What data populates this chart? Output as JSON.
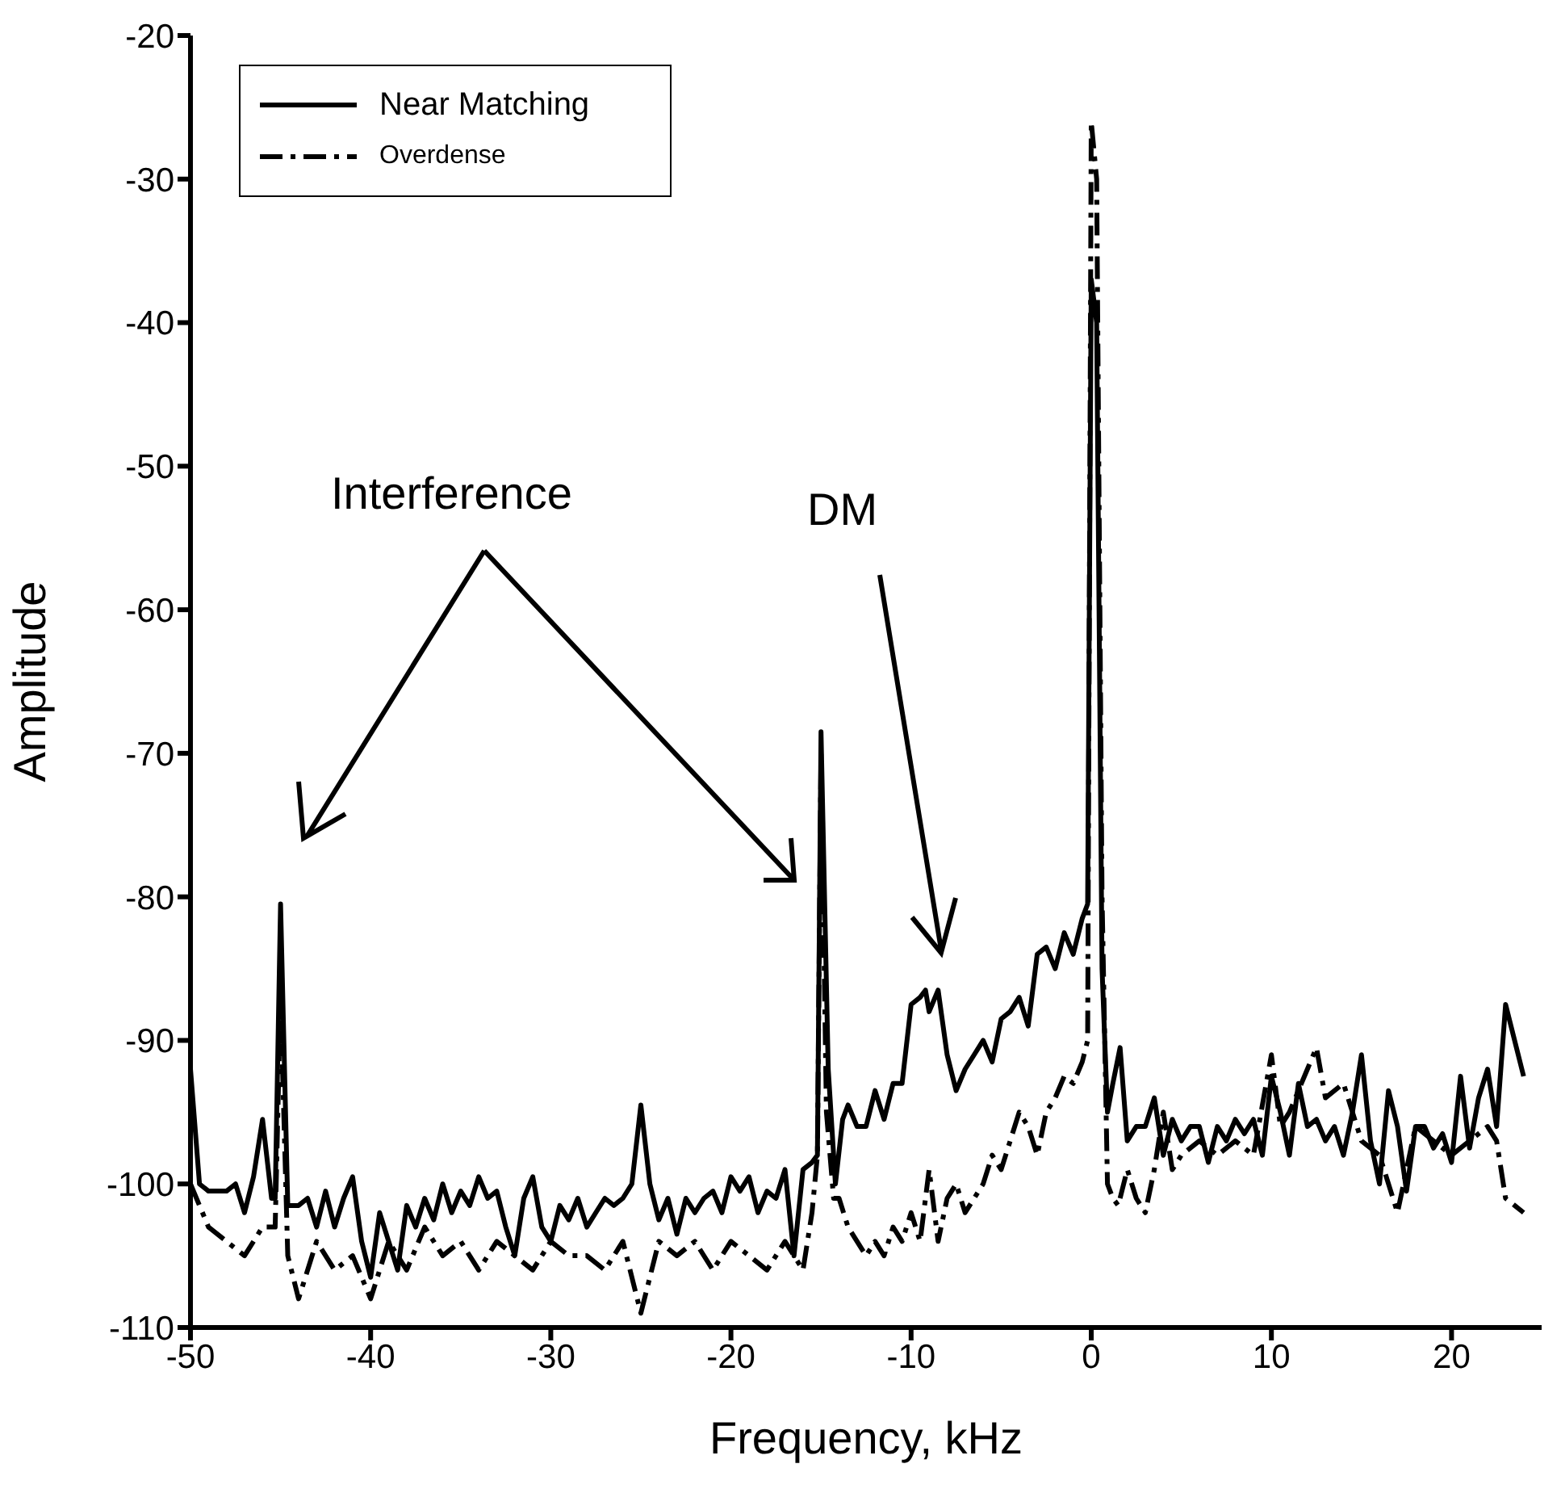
{
  "chart_data": {
    "type": "line",
    "xlabel": "Frequency, kHz",
    "ylabel": "Amplitude",
    "xlim": [
      -50,
      25
    ],
    "xticks": [
      -50,
      -40,
      -30,
      -20,
      -10,
      0,
      10,
      20
    ],
    "ylim": [
      -110,
      -20
    ],
    "yticks": [
      -110,
      -100,
      -90,
      -80,
      -70,
      -60,
      -50,
      -40,
      -30,
      -20
    ],
    "legend": "top left",
    "marker": "none",
    "annotations": [
      "Interference",
      "DM"
    ],
    "series": [
      {
        "name": "Near Matching",
        "color": "#000000",
        "line_style": "solid",
        "x": [
          -50,
          -49.5,
          -49,
          -48,
          -47.5,
          -47,
          -46.5,
          -46,
          -45.5,
          -45.3,
          -45,
          -44.6,
          -44,
          -43.5,
          -43,
          -42.5,
          -42,
          -41.5,
          -41,
          -40.5,
          -40,
          -39.5,
          -39,
          -38.5,
          -38,
          -37.5,
          -37,
          -36.5,
          -36,
          -35.5,
          -35,
          -34.5,
          -34,
          -33.5,
          -33,
          -32.5,
          -32,
          -31.5,
          -31,
          -30.5,
          -30,
          -29.5,
          -29,
          -28.5,
          -28,
          -27.5,
          -27,
          -26.5,
          -26,
          -25.5,
          -25,
          -24.5,
          -24,
          -23.5,
          -23,
          -22.5,
          -22,
          -21.5,
          -21,
          -20.5,
          -20,
          -19.5,
          -19,
          -18.5,
          -18,
          -17.5,
          -17,
          -16.5,
          -16,
          -15.5,
          -15.2,
          -15,
          -14.6,
          -14.2,
          -13.8,
          -13.5,
          -13,
          -12.5,
          -12,
          -11.5,
          -11,
          -10.5,
          -10,
          -9.5,
          -9.2,
          -9,
          -8.5,
          -8,
          -7.5,
          -7,
          -6.5,
          -6,
          -5.5,
          -5,
          -4.5,
          -4,
          -3.5,
          -3,
          -2.5,
          -2,
          -1.5,
          -1,
          -0.5,
          -0.2,
          0,
          0.3,
          0.6,
          0.9,
          1.2,
          1.6,
          2,
          2.5,
          3,
          3.5,
          4,
          4.5,
          5,
          5.5,
          6,
          6.5,
          7,
          7.5,
          8,
          8.5,
          9,
          9.5,
          10,
          10.5,
          11,
          11.5,
          12,
          12.5,
          13,
          13.5,
          14,
          14.5,
          15,
          15.5,
          16,
          16.5,
          17,
          17.5,
          18,
          18.5,
          19,
          19.5,
          20,
          20.5,
          21,
          21.5,
          22,
          22.5,
          23,
          23.5,
          24
        ],
        "values": [
          -92,
          -100,
          -100.5,
          -100.5,
          -100,
          -102,
          -99.5,
          -95.5,
          -101,
          -101,
          -80.5,
          -101.5,
          -101.5,
          -101,
          -103,
          -100.5,
          -103,
          -101,
          -99.5,
          -104,
          -106.5,
          -102,
          -104,
          -106,
          -101.5,
          -103,
          -101,
          -102.5,
          -100,
          -102,
          -100.5,
          -101.5,
          -99.5,
          -101,
          -100.5,
          -103,
          -105,
          -101,
          -99.5,
          -103,
          -104,
          -101.5,
          -102.5,
          -101,
          -103,
          -102,
          -101,
          -101.5,
          -101,
          -100,
          -94.5,
          -100,
          -102.5,
          -101,
          -103.5,
          -101,
          -102,
          -101,
          -100.5,
          -102,
          -99.5,
          -100.5,
          -99.5,
          -102,
          -100.5,
          -101,
          -99,
          -105,
          -99,
          -98.5,
          -98,
          -68.5,
          -92,
          -100,
          -95.5,
          -94.5,
          -96,
          -96,
          -93.5,
          -95.5,
          -93,
          -93,
          -87.5,
          -87,
          -86.5,
          -88,
          -86.5,
          -91,
          -93.5,
          -92,
          -91,
          -90,
          -91.5,
          -88.5,
          -88,
          -87,
          -89,
          -84,
          -83.5,
          -85,
          -82.5,
          -84,
          -81.5,
          -80.5,
          -37,
          -40,
          -85,
          -95,
          -93,
          -90.5,
          -97,
          -96,
          -96,
          -94,
          -98,
          -95.5,
          -97,
          -96,
          -96,
          -98.5,
          -96,
          -97,
          -95.5,
          -96.5,
          -95.5,
          -98,
          -92.5,
          -95,
          -98,
          -93,
          -96,
          -95.5,
          -97,
          -96,
          -98,
          -95,
          -91,
          -97,
          -100,
          -93.5,
          -96,
          -100.5,
          -96,
          -96,
          -97.5,
          -96.5,
          -98.5,
          -92.5,
          -97.5,
          -94,
          -92,
          -96,
          -87.5,
          -90,
          -92.5
        ]
      },
      {
        "name": "Overdense",
        "color": "#000000",
        "line_style": "dashdot",
        "x": [
          -50,
          -49,
          -48,
          -47,
          -46,
          -45.3,
          -45,
          -44.6,
          -44,
          -43,
          -42,
          -41,
          -40,
          -39,
          -38,
          -37,
          -36,
          -35,
          -34,
          -33,
          -32,
          -31,
          -30,
          -29,
          -28,
          -27,
          -26,
          -25,
          -24,
          -23,
          -22,
          -21,
          -20,
          -19,
          -18,
          -17,
          -16,
          -15.5,
          -15.2,
          -15,
          -14.7,
          -14.3,
          -14,
          -13.5,
          -13,
          -12.5,
          -12,
          -11.5,
          -11,
          -10.5,
          -10,
          -9.5,
          -9,
          -8.5,
          -8,
          -7.5,
          -7,
          -6.5,
          -6,
          -5.5,
          -5,
          -4.5,
          -4,
          -3.5,
          -3,
          -2.5,
          -2,
          -1.5,
          -1,
          -0.5,
          -0.2,
          0,
          0.3,
          0.6,
          0.9,
          1.2,
          1.5,
          2,
          2.5,
          3,
          3.5,
          4,
          4.5,
          5,
          6,
          7,
          8,
          9,
          10,
          10.5,
          11,
          12,
          12.5,
          13,
          14,
          15,
          16,
          17,
          18,
          19,
          20,
          21,
          22,
          22.5,
          23,
          24
        ],
        "values": [
          -100,
          -103,
          -104,
          -105,
          -103,
          -103,
          -87,
          -105,
          -108,
          -104,
          -106,
          -105,
          -108,
          -104,
          -106,
          -103,
          -105,
          -104,
          -106,
          -104,
          -105,
          -106,
          -104,
          -105,
          -105,
          -106,
          -104,
          -109,
          -104,
          -105,
          -104,
          -106,
          -104,
          -105,
          -106,
          -104,
          -106,
          -102,
          -98,
          -70,
          -95,
          -101,
          -101,
          -103,
          -104,
          -105,
          -104,
          -105,
          -103,
          -104,
          -102,
          -104,
          -99,
          -104,
          -101,
          -100,
          -102,
          -101,
          -100,
          -98,
          -99,
          -97,
          -95,
          -96,
          -98,
          -95,
          -94,
          -92.5,
          -93,
          -91.5,
          -90,
          -26,
          -30,
          -80,
          -100,
          -101,
          -101.5,
          -99,
          -101,
          -102,
          -99,
          -95,
          -99,
          -98,
          -97,
          -98,
          -97,
          -98,
          -91,
          -96,
          -95,
          -92,
          -90.5,
          -94,
          -93,
          -97,
          -98,
          -102,
          -96,
          -97,
          -98,
          -97,
          -96,
          -97,
          -101,
          -102
        ]
      }
    ]
  }
}
